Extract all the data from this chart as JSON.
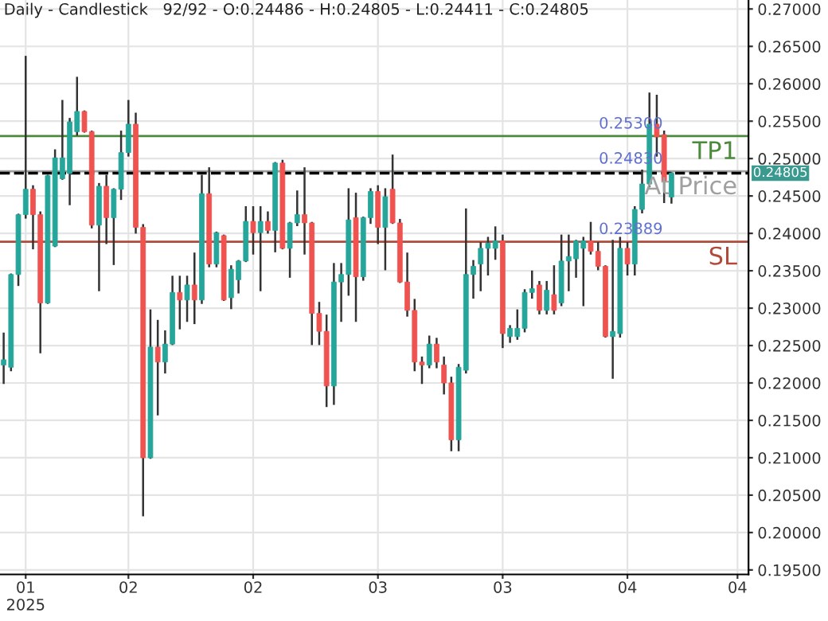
{
  "chart_data": {
    "type": "candlestick",
    "title": "Daily - Candlestick   92/92 - O:0.24486 - H:0.24805 - L:0.24411 - C:0.24805",
    "categories": [
      null,
      null,
      null,
      "01\n2025",
      null,
      null,
      null,
      null,
      null,
      null,
      null,
      null,
      null,
      null,
      null,
      null,
      null,
      "02",
      null,
      null,
      null,
      null,
      null,
      null,
      null,
      null,
      null,
      null,
      null,
      null,
      null,
      null,
      null,
      null,
      "02",
      null,
      null,
      null,
      null,
      null,
      null,
      null,
      null,
      null,
      null,
      null,
      null,
      null,
      null,
      null,
      null,
      "03",
      null,
      null,
      null,
      null,
      null,
      null,
      null,
      null,
      null,
      null,
      null,
      null,
      null,
      null,
      null,
      null,
      "03",
      null,
      null,
      null,
      null,
      null,
      null,
      null,
      null,
      null,
      null,
      null,
      null,
      null,
      null,
      null,
      null,
      "04",
      null,
      null,
      null,
      null,
      null,
      null,
      null,
      null,
      null,
      null,
      null,
      null,
      null,
      null,
      "04",
      null
    ],
    "ohlc": [
      [
        0.2224,
        0.2266,
        0.22,
        0.2231
      ],
      [
        0.2221,
        0.2345,
        0.2217,
        0.2345
      ],
      [
        0.2345,
        0.2425,
        0.2331,
        0.2425
      ],
      [
        0.2425,
        0.2636,
        0.2421,
        0.2459
      ],
      [
        0.2459,
        0.2463,
        0.238,
        0.2425
      ],
      [
        0.2425,
        0.2428,
        0.2241,
        0.2307
      ],
      [
        0.2307,
        0.2477,
        0.2307,
        0.2477
      ],
      [
        0.2383,
        0.2511,
        0.2383,
        0.2501
      ],
      [
        0.2473,
        0.2577,
        0.2473,
        0.2501
      ],
      [
        0.248,
        0.2553,
        0.2439,
        0.2549
      ],
      [
        0.2536,
        0.2608,
        0.2532,
        0.2563
      ],
      [
        0.2563,
        0.2563,
        0.2536,
        0.2536
      ],
      [
        0.2536,
        0.2536,
        0.2408,
        0.2411
      ],
      [
        0.2411,
        0.2466,
        0.2324,
        0.2463
      ],
      [
        0.2463,
        0.2477,
        0.2387,
        0.2421
      ],
      [
        0.2421,
        0.2459,
        0.2359,
        0.2459
      ],
      [
        0.2459,
        0.2536,
        0.2446,
        0.2508
      ],
      [
        0.2508,
        0.2577,
        0.2504,
        0.2546
      ],
      [
        0.2546,
        0.256,
        0.2401,
        0.2408
      ],
      [
        0.2408,
        0.2411,
        0.2023,
        0.21
      ],
      [
        0.21,
        0.2297,
        0.21,
        0.2248
      ],
      [
        0.2248,
        0.2283,
        0.2158,
        0.2228
      ],
      [
        0.2228,
        0.2269,
        0.2214,
        0.2252
      ],
      [
        0.2252,
        0.2342,
        0.2252,
        0.2321
      ],
      [
        0.2321,
        0.2342,
        0.2273,
        0.2311
      ],
      [
        0.2311,
        0.2342,
        0.2283,
        0.2331
      ],
      [
        0.2331,
        0.2373,
        0.228,
        0.2311
      ],
      [
        0.2311,
        0.2477,
        0.2307,
        0.2453
      ],
      [
        0.2453,
        0.2487,
        0.2356,
        0.2359
      ],
      [
        0.2359,
        0.2401,
        0.2356,
        0.2401
      ],
      [
        0.2397,
        0.2397,
        0.2311,
        0.2311
      ],
      [
        0.2314,
        0.2356,
        0.23,
        0.2352
      ],
      [
        0.2338,
        0.2363,
        0.2321,
        0.2363
      ],
      [
        0.2363,
        0.2435,
        0.2363,
        0.2416
      ],
      [
        0.2416,
        0.2435,
        0.2373,
        0.2401
      ],
      [
        0.2401,
        0.2435,
        0.2324,
        0.2416
      ],
      [
        0.2416,
        0.2428,
        0.2401,
        0.2404
      ],
      [
        0.2404,
        0.2494,
        0.2376,
        0.2494
      ],
      [
        0.2494,
        0.2497,
        0.238,
        0.238
      ],
      [
        0.238,
        0.2414,
        0.2342,
        0.2414
      ],
      [
        0.2414,
        0.2456,
        0.2411,
        0.2425
      ],
      [
        0.2425,
        0.2487,
        0.2373,
        0.2414
      ],
      [
        0.2414,
        0.2414,
        0.2252,
        0.2293
      ],
      [
        0.2293,
        0.2307,
        0.2252,
        0.2269
      ],
      [
        0.2269,
        0.229,
        0.2169,
        0.2196
      ],
      [
        0.2196,
        0.2359,
        0.2172,
        0.2335
      ],
      [
        0.2335,
        0.2359,
        0.2283,
        0.2345
      ],
      [
        0.2345,
        0.2459,
        0.2318,
        0.2418
      ],
      [
        0.2421,
        0.2453,
        0.2283,
        0.2342
      ],
      [
        0.2342,
        0.2421,
        0.2338,
        0.2421
      ],
      [
        0.2421,
        0.2459,
        0.2414,
        0.2456
      ],
      [
        0.2456,
        0.2463,
        0.2387,
        0.2408
      ],
      [
        0.2408,
        0.2459,
        0.2352,
        0.2449
      ],
      [
        0.2459,
        0.2504,
        0.2414,
        0.2414
      ],
      [
        0.2414,
        0.2418,
        0.2335,
        0.2335
      ],
      [
        0.2335,
        0.2373,
        0.229,
        0.2297
      ],
      [
        0.2297,
        0.2311,
        0.2217,
        0.2228
      ],
      [
        0.2228,
        0.2234,
        0.22,
        0.2224
      ],
      [
        0.2224,
        0.2262,
        0.2221,
        0.2252
      ],
      [
        0.2252,
        0.2259,
        0.2221,
        0.2228
      ],
      [
        0.2224,
        0.2234,
        0.2186,
        0.22
      ],
      [
        0.22,
        0.2207,
        0.211,
        0.2124
      ],
      [
        0.2124,
        0.2224,
        0.211,
        0.2221
      ],
      [
        0.2217,
        0.2432,
        0.2214,
        0.2345
      ],
      [
        0.2345,
        0.2363,
        0.2314,
        0.2356
      ],
      [
        0.2359,
        0.2387,
        0.2324,
        0.238
      ],
      [
        0.238,
        0.2394,
        0.2345,
        0.2387
      ],
      [
        0.238,
        0.2408,
        0.2366,
        0.239
      ],
      [
        0.239,
        0.2397,
        0.2248,
        0.2266
      ],
      [
        0.2262,
        0.2276,
        0.2255,
        0.2273
      ],
      [
        0.2262,
        0.2297,
        0.2259,
        0.2273
      ],
      [
        0.2273,
        0.2324,
        0.2269,
        0.2321
      ],
      [
        0.2321,
        0.2349,
        0.2314,
        0.2326
      ],
      [
        0.2331,
        0.2335,
        0.2293,
        0.2297
      ],
      [
        0.2297,
        0.2335,
        0.2293,
        0.2324
      ],
      [
        0.2318,
        0.2356,
        0.2293,
        0.2297
      ],
      [
        0.2307,
        0.2397,
        0.2304,
        0.2363
      ],
      [
        0.2363,
        0.2397,
        0.2324,
        0.2369
      ],
      [
        0.2366,
        0.239,
        0.2342,
        0.239
      ],
      [
        0.238,
        0.2394,
        0.2304,
        0.239
      ],
      [
        0.239,
        0.2414,
        0.2373,
        0.2376
      ],
      [
        0.2376,
        0.2387,
        0.2352,
        0.2356
      ],
      [
        0.2356,
        0.2356,
        0.2262,
        0.2262
      ],
      [
        0.2262,
        0.239,
        0.2207,
        0.2269
      ],
      [
        0.2266,
        0.2394,
        0.2262,
        0.238
      ],
      [
        0.238,
        0.2387,
        0.2345,
        0.2359
      ],
      [
        0.2359,
        0.2435,
        0.2345,
        0.2432
      ],
      [
        0.2432,
        0.2484,
        0.2428,
        0.2466
      ],
      [
        0.2466,
        0.2587,
        0.2463,
        0.2546
      ],
      [
        0.2546,
        0.2584,
        0.2504,
        0.2529
      ],
      [
        0.2532,
        0.2536,
        0.2442,
        0.247
      ],
      [
        0.24486,
        0.24805,
        0.24411,
        0.24805
      ],
      null,
      null,
      null,
      null,
      null,
      null,
      null,
      null,
      null,
      null
    ],
    "colors": [
      "#26a69a",
      "#26a69a",
      "#26a69a",
      "#26a69a",
      "#ef5350",
      "#ef5350",
      "#26a69a",
      "#26a69a",
      "#26a69a",
      "#26a69a",
      "#26a69a",
      "#ef5350",
      "#ef5350",
      "#26a69a",
      "#ef5350",
      "#26a69a",
      "#26a69a",
      "#26a69a",
      "#ef5350",
      "#ef5350",
      "#26a69a",
      "#ef5350",
      "#26a69a",
      "#26a69a",
      "#ef5350",
      "#26a69a",
      "#ef5350",
      "#26a69a",
      "#ef5350",
      "#26a69a",
      "#ef5350",
      "#26a69a",
      "#26a69a",
      "#26a69a",
      "#ef5350",
      "#26a69a",
      "#ef5350",
      "#26a69a",
      "#ef5350",
      "#26a69a",
      "#26a69a",
      "#ef5350",
      "#ef5350",
      "#ef5350",
      "#ef5350",
      "#26a69a",
      "#26a69a",
      "#26a69a",
      "#ef5350",
      "#26a69a",
      "#26a69a",
      "#ef5350",
      "#26a69a",
      "#ef5350",
      "#ef5350",
      "#ef5350",
      "#ef5350",
      "#ef5350",
      "#26a69a",
      "#ef5350",
      "#ef5350",
      "#ef5350",
      "#26a69a",
      "#26a69a",
      "#26a69a",
      "#26a69a",
      "#26a69a",
      "#26a69a",
      "#ef5350",
      "#26a69a",
      "#26a69a",
      "#26a69a",
      "#26a69a",
      "#ef5350",
      "#26a69a",
      "#ef5350",
      "#26a69a",
      "#26a69a",
      "#26a69a",
      "#26a69a",
      "#ef5350",
      "#ef5350",
      "#ef5350",
      "#26a69a",
      "#26a69a",
      "#ef5350",
      "#26a69a",
      "#26a69a",
      "#26a69a",
      "#ef5350",
      "#ef5350",
      "#26a69a",
      null,
      null,
      null,
      null,
      null,
      null,
      null,
      null,
      null,
      null
    ],
    "ylim": [
      0.1944,
      0.2712
    ],
    "yticks": [
      {
        "value": 0.195,
        "label": "0.19500"
      },
      {
        "value": 0.2,
        "label": "0.20000"
      },
      {
        "value": 0.205,
        "label": "0.20500"
      },
      {
        "value": 0.21,
        "label": "0.21000"
      },
      {
        "value": 0.215,
        "label": "0.21500"
      },
      {
        "value": 0.22,
        "label": "0.22000"
      },
      {
        "value": 0.225,
        "label": "0.22500"
      },
      {
        "value": 0.23,
        "label": "0.23000"
      },
      {
        "value": 0.235,
        "label": "0.23500"
      },
      {
        "value": 0.24,
        "label": "0.24000"
      },
      {
        "value": 0.245,
        "label": "0.24500"
      },
      {
        "value": 0.25,
        "label": "0.25000"
      },
      {
        "value": 0.255,
        "label": "0.25500"
      },
      {
        "value": 0.26,
        "label": "0.26000"
      },
      {
        "value": 0.265,
        "label": "0.26500"
      },
      {
        "value": 0.27,
        "label": "0.27000"
      }
    ],
    "grid": true,
    "ref_lines": [
      {
        "axis": "y",
        "value": 0.253,
        "label": "TP1",
        "color": "#4a8a3a"
      },
      {
        "axis": "y",
        "value": 0.2483,
        "label": "At Price",
        "color": "#a0a0a0"
      },
      {
        "axis": "y",
        "value": 0.23889,
        "label": "SL",
        "color": "#b04a3a"
      },
      {
        "axis": "y",
        "value": 0.24805,
        "label": "0.24805",
        "color": "#000000",
        "line_style": "dashed"
      }
    ],
    "annotations": [
      {
        "text": "0.25300",
        "y": 0.253
      },
      {
        "text": "0.24830",
        "y": 0.2483
      },
      {
        "text": "0.23889",
        "y": 0.23889
      }
    ]
  }
}
